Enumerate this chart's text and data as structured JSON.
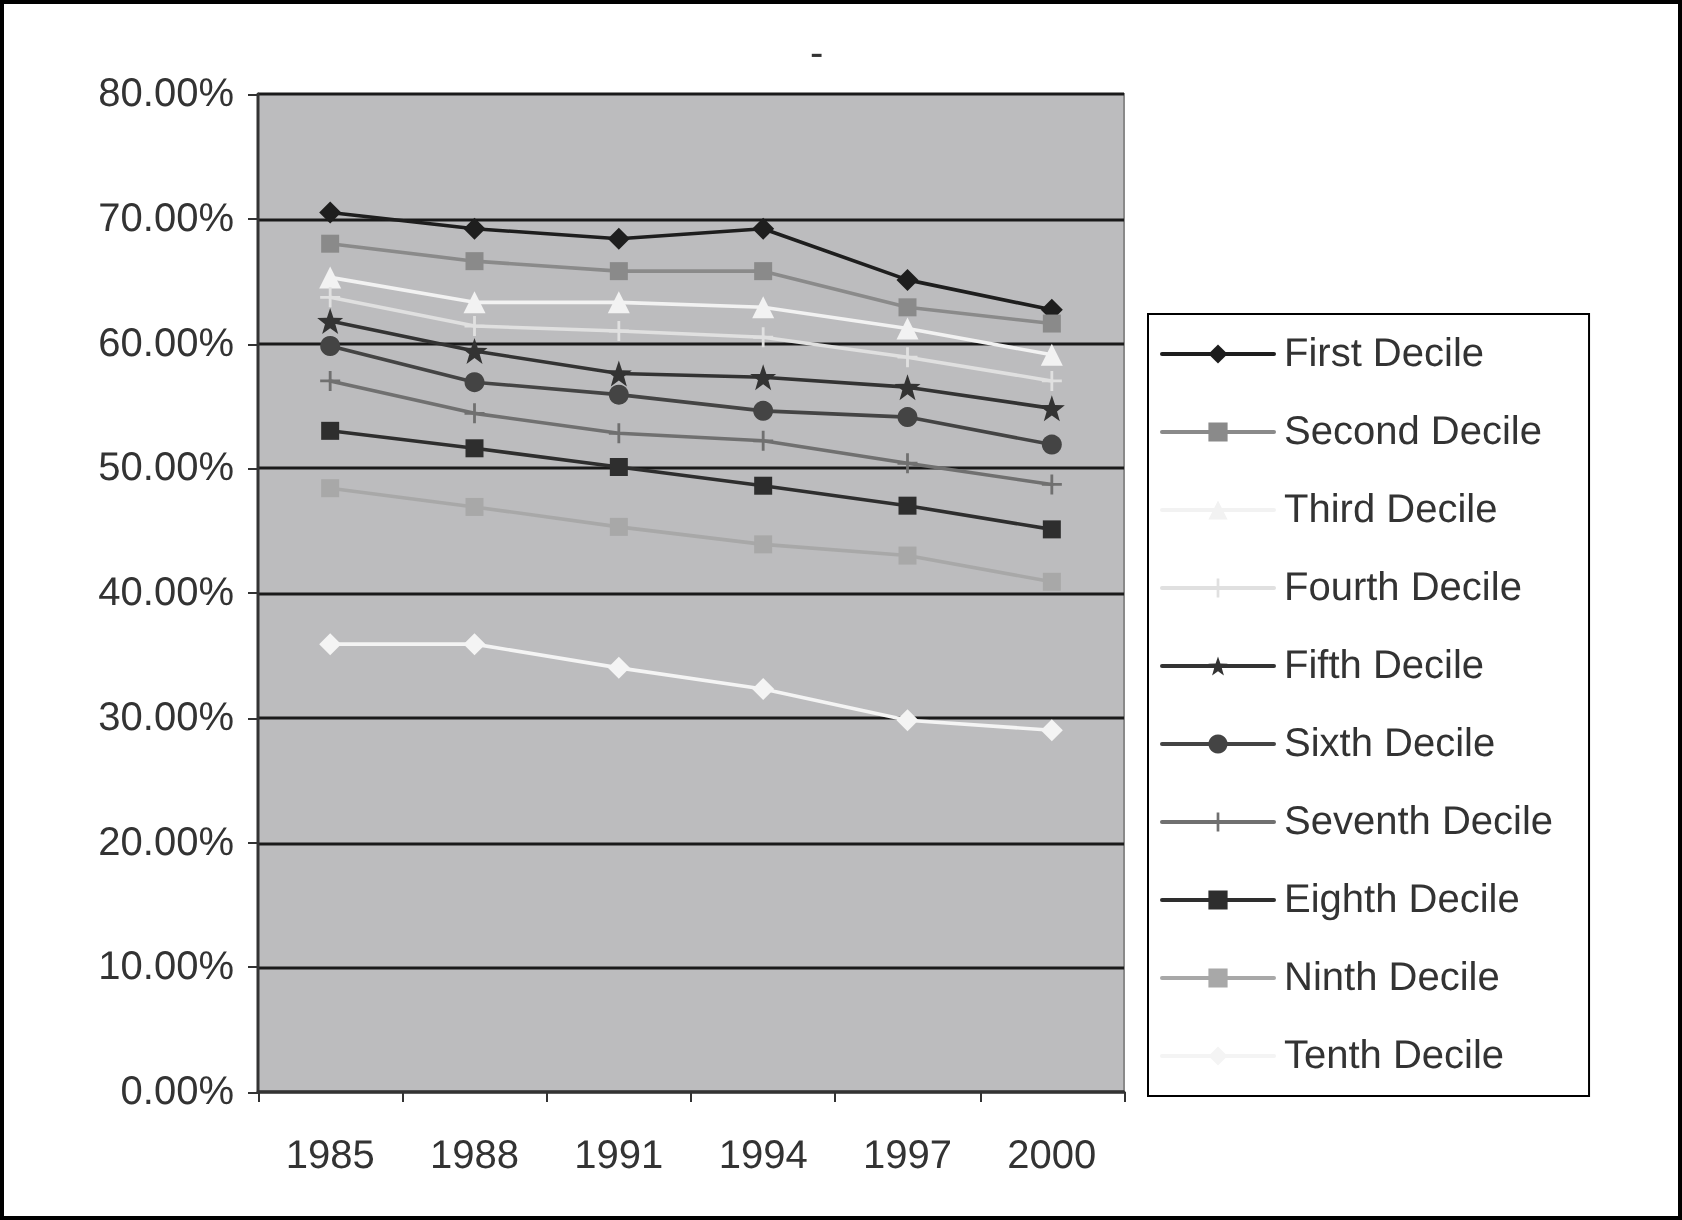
{
  "chart_data": {
    "type": "line",
    "title": "-",
    "categories": [
      "1985",
      "1988",
      "1991",
      "1994",
      "1997",
      "2000"
    ],
    "series": [
      {
        "name": "First Decile",
        "color": "#1e1e1e",
        "marker": "diamond",
        "values": [
          70.5,
          69.2,
          68.4,
          69.2,
          65.1,
          62.7
        ]
      },
      {
        "name": "Second Decile",
        "color": "#8a8a8a",
        "marker": "square",
        "values": [
          68.0,
          66.6,
          65.8,
          65.8,
          62.9,
          61.6
        ]
      },
      {
        "name": "Third Decile",
        "color": "#f2f2f2",
        "marker": "triangle",
        "values": [
          65.3,
          63.3,
          63.3,
          62.9,
          61.2,
          59.1
        ]
      },
      {
        "name": "Fourth Decile",
        "color": "#e0e0e0",
        "marker": "cross",
        "values": [
          63.7,
          61.4,
          61.0,
          60.5,
          58.9,
          57.0
        ]
      },
      {
        "name": "Fifth Decile",
        "color": "#333333",
        "marker": "star",
        "values": [
          61.8,
          59.4,
          57.6,
          57.3,
          56.5,
          54.8
        ]
      },
      {
        "name": "Sixth Decile",
        "color": "#444444",
        "marker": "circle",
        "values": [
          59.8,
          56.9,
          55.9,
          54.6,
          54.1,
          51.9
        ]
      },
      {
        "name": "Seventh Decile",
        "color": "#707070",
        "marker": "cross",
        "values": [
          57.0,
          54.4,
          52.8,
          52.2,
          50.4,
          48.7
        ]
      },
      {
        "name": "Eighth Decile",
        "color": "#2e2e2e",
        "marker": "square",
        "values": [
          53.0,
          51.6,
          50.1,
          48.6,
          47.0,
          45.1
        ]
      },
      {
        "name": "Ninth Decile",
        "color": "#a8a8a8",
        "marker": "square",
        "values": [
          48.4,
          46.9,
          45.3,
          43.9,
          43.0,
          40.9
        ]
      },
      {
        "name": "Tenth Decile",
        "color": "#f4f4f4",
        "marker": "diamond",
        "values": [
          35.9,
          35.9,
          34.0,
          32.3,
          29.8,
          29.0
        ]
      }
    ],
    "ylim": [
      0,
      80
    ],
    "yticks": [
      {
        "value": 0,
        "label": "0.00%"
      },
      {
        "value": 10,
        "label": "10.00%"
      },
      {
        "value": 20,
        "label": "20.00%"
      },
      {
        "value": 30,
        "label": "30.00%"
      },
      {
        "value": 40,
        "label": "40.00%"
      },
      {
        "value": 50,
        "label": "50.00%"
      },
      {
        "value": 60,
        "label": "60.00%"
      },
      {
        "value": 70,
        "label": "70.00%"
      },
      {
        "value": 80,
        "label": "80.00%"
      }
    ],
    "grid": "y",
    "legend": "right"
  }
}
